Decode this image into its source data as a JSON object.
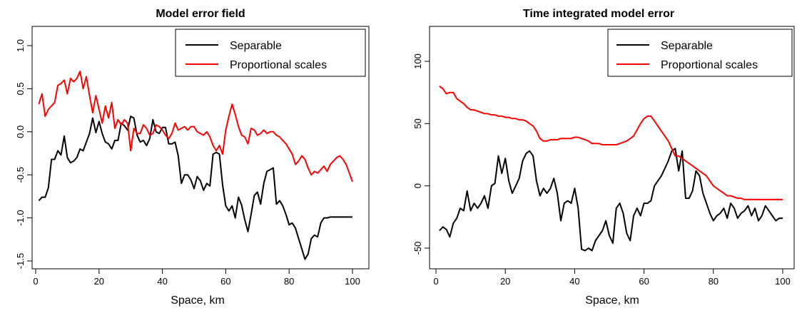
{
  "chart_data": [
    {
      "type": "line",
      "title": "Model error field",
      "xlabel": "Space, km",
      "ylabel": "",
      "xlim": [
        0,
        100
      ],
      "ylim": [
        -1.5,
        1.0
      ],
      "xticks": [
        0,
        20,
        40,
        60,
        80,
        100
      ],
      "xtick_labels": [
        "0",
        "20",
        "40",
        "60",
        "80",
        "100"
      ],
      "yticks": [
        -1.5,
        -1.0,
        -0.5,
        0.0,
        0.5,
        1.0
      ],
      "ytick_labels": [
        "-1.5",
        "-1.0",
        "-0.5",
        "0.0",
        "0.5",
        "1.0"
      ],
      "legend_position": "top-right",
      "series": [
        {
          "name": "Separable",
          "color": "#000000",
          "x": [
            1,
            2,
            3,
            4,
            5,
            6,
            7,
            8,
            9,
            10,
            11,
            12,
            13,
            14,
            15,
            16,
            17,
            18,
            19,
            20,
            21,
            22,
            23,
            24,
            25,
            26,
            27,
            28,
            29,
            30,
            31,
            32,
            33,
            34,
            35,
            36,
            37,
            38,
            39,
            40,
            41,
            42,
            43,
            44,
            45,
            46,
            47,
            48,
            49,
            50,
            51,
            52,
            53,
            54,
            55,
            56,
            57,
            58,
            59,
            60,
            61,
            62,
            63,
            64,
            65,
            66,
            67,
            68,
            69,
            70,
            71,
            72,
            73,
            74,
            75,
            76,
            77,
            78,
            79,
            80,
            81,
            82,
            83,
            84,
            85,
            86,
            87,
            88,
            89,
            90,
            91,
            92,
            93,
            94,
            95,
            96,
            97,
            98,
            99,
            100
          ],
          "values": [
            -0.8,
            -0.76,
            -0.76,
            -0.65,
            -0.32,
            -0.32,
            -0.22,
            -0.27,
            -0.05,
            -0.3,
            -0.36,
            -0.34,
            -0.3,
            -0.2,
            -0.22,
            -0.12,
            -0.02,
            0.16,
            -0.01,
            0.12,
            -0.02,
            -0.12,
            -0.14,
            -0.2,
            -0.1,
            -0.1,
            0.1,
            0.07,
            0.02,
            0.18,
            0.16,
            -0.04,
            -0.12,
            -0.1,
            -0.16,
            -0.08,
            0.14,
            0.0,
            -0.02,
            0.05,
            0.05,
            -0.14,
            -0.14,
            -0.12,
            -0.28,
            -0.6,
            -0.5,
            -0.5,
            -0.56,
            -0.66,
            -0.52,
            -0.57,
            -0.68,
            -0.6,
            -0.63,
            -0.26,
            -0.24,
            -0.26,
            -0.62,
            -0.86,
            -0.92,
            -0.86,
            -1.0,
            -0.76,
            -0.85,
            -1.02,
            -1.16,
            -0.96,
            -0.74,
            -0.7,
            -0.84,
            -0.6,
            -0.46,
            -0.44,
            -0.42,
            -0.84,
            -0.8,
            -0.86,
            -0.96,
            -1.08,
            -1.06,
            -1.12,
            -1.24,
            -1.36,
            -1.48,
            -1.42,
            -1.24,
            -1.2,
            -1.22,
            -1.06,
            -1.0,
            -1.0,
            -0.99,
            -0.99,
            -0.99,
            -0.99,
            -0.99,
            -0.99,
            -0.99,
            -0.99
          ]
        },
        {
          "name": "Proportional scales",
          "color": "#ff0000",
          "x": [
            1,
            2,
            3,
            4,
            5,
            6,
            7,
            8,
            9,
            10,
            11,
            12,
            13,
            14,
            15,
            16,
            17,
            18,
            19,
            20,
            21,
            22,
            23,
            24,
            25,
            26,
            27,
            28,
            29,
            30,
            31,
            32,
            33,
            34,
            35,
            36,
            37,
            38,
            39,
            40,
            41,
            42,
            43,
            44,
            45,
            46,
            47,
            48,
            49,
            50,
            51,
            52,
            53,
            54,
            55,
            56,
            57,
            58,
            59,
            60,
            61,
            62,
            63,
            64,
            65,
            66,
            67,
            68,
            69,
            70,
            71,
            72,
            73,
            74,
            75,
            76,
            77,
            78,
            79,
            80,
            81,
            82,
            83,
            84,
            85,
            86,
            87,
            88,
            89,
            90,
            91,
            92,
            93,
            94,
            95,
            96,
            97,
            98,
            99,
            100
          ],
          "values": [
            0.32,
            0.44,
            0.18,
            0.26,
            0.3,
            0.34,
            0.54,
            0.56,
            0.6,
            0.44,
            0.62,
            0.58,
            0.62,
            0.7,
            0.5,
            0.64,
            0.42,
            0.22,
            0.42,
            0.26,
            0.1,
            0.3,
            0.16,
            0.34,
            0.04,
            0.14,
            0.08,
            0.14,
            0.1,
            -0.22,
            0.04,
            -0.02,
            -0.02,
            0.08,
            0.04,
            -0.04,
            -0.02,
            0.08,
            0.06,
            0.02,
            -0.04,
            -0.08,
            -0.02,
            0.1,
            0.02,
            0.04,
            0.06,
            0.02,
            0.06,
            0.06,
            0.0,
            -0.02,
            -0.04,
            0.0,
            -0.06,
            -0.16,
            -0.22,
            -0.16,
            -0.26,
            0.02,
            0.18,
            0.32,
            0.2,
            0.06,
            -0.04,
            -0.06,
            -0.14,
            0.04,
            0.02,
            -0.04,
            -0.02,
            0.02,
            -0.02,
            0.0,
            0.0,
            -0.04,
            -0.06,
            -0.1,
            -0.14,
            -0.2,
            -0.26,
            -0.38,
            -0.34,
            -0.28,
            -0.32,
            -0.42,
            -0.5,
            -0.46,
            -0.48,
            -0.44,
            -0.4,
            -0.46,
            -0.38,
            -0.34,
            -0.3,
            -0.28,
            -0.32,
            -0.38,
            -0.48,
            -0.58
          ]
        }
      ]
    },
    {
      "type": "line",
      "title": "Time integrated model error",
      "xlabel": "Space, km",
      "ylabel": "",
      "xlim": [
        0,
        100
      ],
      "ylim": [
        -60,
        120
      ],
      "xticks": [
        0,
        20,
        40,
        60,
        80,
        100
      ],
      "xtick_labels": [
        "0",
        "20",
        "40",
        "60",
        "80",
        "100"
      ],
      "yticks": [
        -50,
        0,
        50,
        100
      ],
      "ytick_labels": [
        "-50",
        "0",
        "50",
        "100"
      ],
      "legend_position": "top-right",
      "series": [
        {
          "name": "Separable",
          "color": "#000000",
          "x": [
            1,
            2,
            3,
            4,
            5,
            6,
            7,
            8,
            9,
            10,
            11,
            12,
            13,
            14,
            15,
            16,
            17,
            18,
            19,
            20,
            21,
            22,
            23,
            24,
            25,
            26,
            27,
            28,
            29,
            30,
            31,
            32,
            33,
            34,
            35,
            36,
            37,
            38,
            39,
            40,
            41,
            42,
            43,
            44,
            45,
            46,
            47,
            48,
            49,
            50,
            51,
            52,
            53,
            54,
            55,
            56,
            57,
            58,
            59,
            60,
            61,
            62,
            63,
            64,
            65,
            66,
            67,
            68,
            69,
            70,
            71,
            72,
            73,
            74,
            75,
            76,
            77,
            78,
            79,
            80,
            81,
            82,
            83,
            84,
            85,
            86,
            87,
            88,
            89,
            90,
            91,
            92,
            93,
            94,
            95,
            96,
            97,
            98,
            99,
            100
          ],
          "values": [
            -36,
            -33,
            -35,
            -41,
            -30,
            -26,
            -18,
            -20,
            -4,
            -20,
            -14,
            -18,
            -14,
            -8,
            -18,
            0,
            2,
            24,
            10,
            22,
            4,
            -6,
            0,
            6,
            20,
            26,
            28,
            24,
            4,
            -8,
            -2,
            -6,
            -2,
            6,
            -6,
            -28,
            -14,
            -12,
            -14,
            -2,
            -18,
            -51,
            -52,
            -50,
            -52,
            -44,
            -40,
            -36,
            -28,
            -40,
            -46,
            -18,
            -14,
            -22,
            -38,
            -44,
            -24,
            -18,
            -24,
            -14,
            -14,
            -12,
            0,
            4,
            8,
            14,
            20,
            28,
            30,
            12,
            28,
            -10,
            -10,
            -4,
            12,
            8,
            -6,
            -14,
            -22,
            -28,
            -24,
            -22,
            -18,
            -26,
            -14,
            -18,
            -26,
            -22,
            -20,
            -16,
            -24,
            -18,
            -28,
            -24,
            -16,
            -20,
            -24,
            -28,
            -26,
            -26
          ]
        },
        {
          "name": "Proportional scales",
          "color": "#ff0000",
          "x": [
            1,
            2,
            3,
            4,
            5,
            6,
            7,
            8,
            9,
            10,
            11,
            12,
            13,
            14,
            15,
            16,
            17,
            18,
            19,
            20,
            21,
            22,
            23,
            24,
            25,
            26,
            27,
            28,
            29,
            30,
            31,
            32,
            33,
            34,
            35,
            36,
            37,
            38,
            39,
            40,
            41,
            42,
            43,
            44,
            45,
            46,
            47,
            48,
            49,
            50,
            51,
            52,
            53,
            54,
            55,
            56,
            57,
            58,
            59,
            60,
            61,
            62,
            63,
            64,
            65,
            66,
            67,
            68,
            69,
            70,
            71,
            72,
            73,
            74,
            75,
            76,
            77,
            78,
            79,
            80,
            81,
            82,
            83,
            84,
            85,
            86,
            87,
            88,
            89,
            90,
            91,
            92,
            93,
            94,
            95,
            96,
            97,
            98,
            99,
            100
          ],
          "values": [
            80,
            78,
            74,
            75,
            75,
            70,
            68,
            66,
            63,
            61,
            61,
            60,
            59,
            58,
            58,
            57,
            57,
            56,
            56,
            55,
            55,
            54,
            54,
            53,
            53,
            52,
            50,
            48,
            44,
            38,
            36,
            36,
            37,
            37,
            37,
            38,
            38,
            38,
            38,
            39,
            39,
            38,
            37,
            36,
            34,
            34,
            34,
            33,
            33,
            33,
            33,
            33,
            34,
            35,
            36,
            38,
            40,
            45,
            50,
            54,
            56,
            56,
            52,
            48,
            44,
            40,
            36,
            30,
            24,
            24,
            22,
            20,
            18,
            16,
            14,
            12,
            10,
            8,
            4,
            0,
            -2,
            -4,
            -6,
            -8,
            -8,
            -9,
            -10,
            -10,
            -11,
            -11,
            -11,
            -11,
            -11,
            -11,
            -11,
            -11,
            -11,
            -11,
            -11,
            -11
          ]
        }
      ]
    }
  ]
}
